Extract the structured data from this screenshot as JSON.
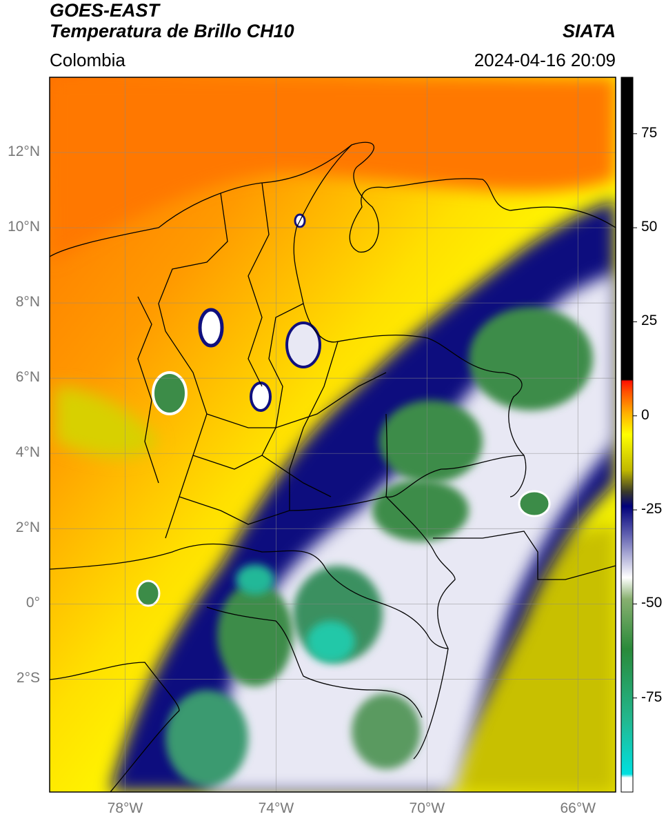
{
  "header": {
    "line1": "GOES-EAST",
    "line2": "Temperatura de Brillo CH10",
    "region": "Colombia",
    "source": "SIATA",
    "datetime": "2024-04-16 20:09"
  },
  "map": {
    "lat_ticks": [
      "12°N",
      "10°N",
      "8°N",
      "6°N",
      "4°N",
      "2°N",
      "0°",
      "2°S"
    ],
    "lat_values": [
      12,
      10,
      8,
      6,
      4,
      2,
      0,
      -2
    ],
    "lon_ticks": [
      "78°W",
      "74°W",
      "70°W",
      "66°W"
    ],
    "lon_values": [
      -78,
      -74,
      -70,
      -66
    ],
    "lat_range": [
      -5.0,
      14.0
    ],
    "lon_range": [
      -80.0,
      -65.0
    ],
    "grid": true
  },
  "colorbar": {
    "ticks": [
      "75",
      "50",
      "25",
      "0",
      "-25",
      "-50",
      "-75"
    ],
    "tick_values": [
      75,
      50,
      25,
      0,
      -25,
      -50,
      -75
    ],
    "range": [
      -100,
      90
    ],
    "colors": {
      "warm_orange": "#ff7a00",
      "yellow": "#ffff00",
      "olive": "#c8c000",
      "navy": "#00007a",
      "white": "#ffffff",
      "green": "#3a8a3a",
      "teal": "#22c8a8",
      "red": "#ff2000",
      "black": "#000000"
    }
  }
}
